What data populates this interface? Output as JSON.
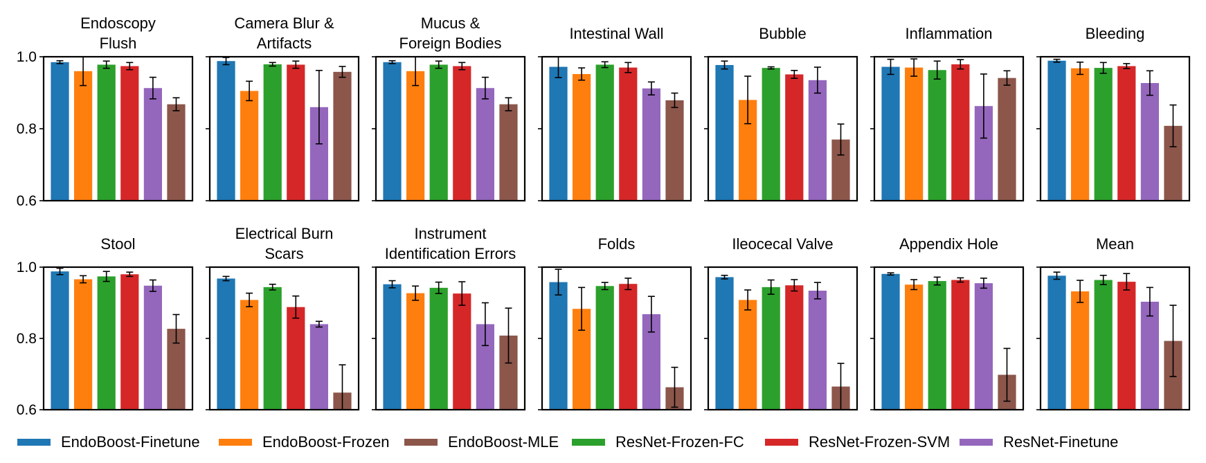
{
  "colors": {
    "EndoBoost-Finetune": "#1f77b4",
    "EndoBoost-Frozen": "#ff7f0e",
    "ResNet-Frozen-FC": "#2ca02c",
    "ResNet-Frozen-SVM": "#d62728",
    "ResNet-Finetune": "#9467bd",
    "EndoBoost-MLE": "#8c564b"
  },
  "legend": {
    "placement": "bottom",
    "items": [
      "EndoBoost-Finetune",
      "EndoBoost-Frozen",
      "EndoBoost-MLE",
      "ResNet-Frozen-FC",
      "ResNet-Frozen-SVM",
      "ResNet-Finetune"
    ]
  },
  "chart_data": {
    "type": "bar",
    "layout": "grid 2 rows x 7 columns",
    "ylim": [
      0.6,
      1.0
    ],
    "yticks": [
      "0.6",
      "0.8",
      "1.0"
    ],
    "series_order": [
      "EndoBoost-Finetune",
      "EndoBoost-Frozen",
      "ResNet-Frozen-FC",
      "ResNet-Frozen-SVM",
      "ResNet-Finetune",
      "EndoBoost-MLE"
    ],
    "panels": [
      {
        "title": [
          "Endoscopy",
          "Flush"
        ],
        "values": [
          0.985,
          0.96,
          0.978,
          0.974,
          0.913,
          0.868
        ],
        "errors": [
          0.004,
          0.04,
          0.01,
          0.01,
          0.03,
          0.018
        ]
      },
      {
        "title": [
          "Camera Blur &",
          "Artifacts"
        ],
        "values": [
          0.988,
          0.905,
          0.979,
          0.978,
          0.86,
          0.958
        ],
        "errors": [
          0.01,
          0.027,
          0.005,
          0.01,
          0.102,
          0.015
        ]
      },
      {
        "title": [
          "Mucus &",
          "Foreign Bodies"
        ],
        "values": [
          0.985,
          0.96,
          0.978,
          0.974,
          0.913,
          0.868
        ],
        "errors": [
          0.004,
          0.04,
          0.01,
          0.01,
          0.03,
          0.018
        ]
      },
      {
        "title": [
          "Intestinal Wall"
        ],
        "values": [
          0.972,
          0.952,
          0.978,
          0.97,
          0.912,
          0.879
        ],
        "errors": [
          0.03,
          0.017,
          0.008,
          0.014,
          0.018,
          0.02
        ]
      },
      {
        "title": [
          "Bubble"
        ],
        "values": [
          0.977,
          0.88,
          0.969,
          0.951,
          0.935,
          0.77
        ],
        "errors": [
          0.011,
          0.066,
          0.003,
          0.011,
          0.036,
          0.043
        ]
      },
      {
        "title": [
          "Inflammation"
        ],
        "values": [
          0.972,
          0.97,
          0.963,
          0.979,
          0.863,
          0.941
        ],
        "errors": [
          0.021,
          0.024,
          0.025,
          0.013,
          0.089,
          0.02
        ]
      },
      {
        "title": [
          "Bleeding"
        ],
        "values": [
          0.989,
          0.968,
          0.969,
          0.974,
          0.927,
          0.808
        ],
        "errors": [
          0.004,
          0.017,
          0.015,
          0.007,
          0.034,
          0.058
        ]
      },
      {
        "title": [
          "Stool"
        ],
        "values": [
          0.988,
          0.966,
          0.974,
          0.98,
          0.948,
          0.827
        ],
        "errors": [
          0.009,
          0.01,
          0.014,
          0.006,
          0.016,
          0.04
        ]
      },
      {
        "title": [
          "Electrical Burn",
          "Scars"
        ],
        "values": [
          0.968,
          0.908,
          0.944,
          0.888,
          0.84,
          0.648
        ],
        "errors": [
          0.006,
          0.019,
          0.008,
          0.031,
          0.008,
          0.078
        ]
      },
      {
        "title": [
          "Instrument",
          "Identification Errors"
        ],
        "values": [
          0.952,
          0.927,
          0.942,
          0.926,
          0.84,
          0.808
        ],
        "errors": [
          0.01,
          0.02,
          0.016,
          0.033,
          0.06,
          0.077
        ]
      },
      {
        "title": [
          "Folds"
        ],
        "values": [
          0.958,
          0.883,
          0.947,
          0.953,
          0.868,
          0.663
        ],
        "errors": [
          0.036,
          0.06,
          0.01,
          0.016,
          0.05,
          0.056
        ]
      },
      {
        "title": [
          "Ileocecal Valve"
        ],
        "values": [
          0.972,
          0.908,
          0.944,
          0.949,
          0.934,
          0.665
        ],
        "errors": [
          0.005,
          0.028,
          0.02,
          0.016,
          0.023,
          0.065
        ]
      },
      {
        "title": [
          "Appendix Hole"
        ],
        "values": [
          0.981,
          0.951,
          0.961,
          0.964,
          0.955,
          0.698
        ],
        "errors": [
          0.003,
          0.014,
          0.011,
          0.006,
          0.014,
          0.074
        ]
      },
      {
        "title": [
          "Mean"
        ],
        "values": [
          0.976,
          0.932,
          0.964,
          0.959,
          0.903,
          0.793
        ],
        "errors": [
          0.01,
          0.031,
          0.013,
          0.023,
          0.04,
          0.1
        ]
      }
    ]
  }
}
